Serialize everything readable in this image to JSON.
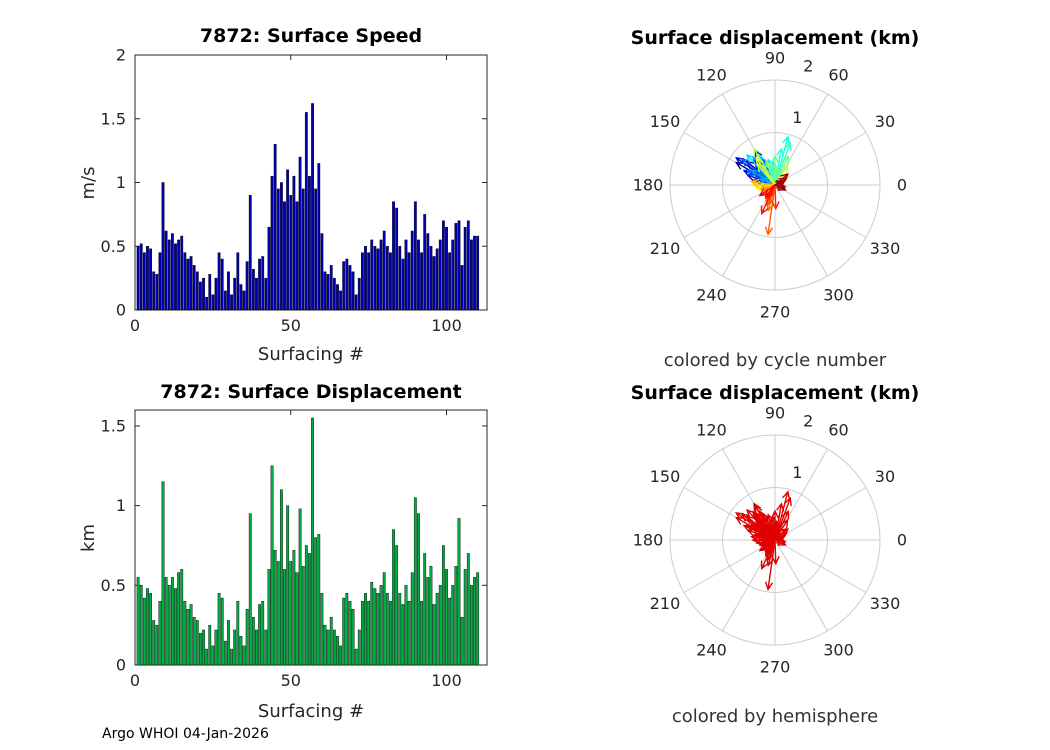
{
  "figure": {
    "footer": "Argo WHOI 04-Jan-2026"
  },
  "displacement_vectors": [
    [
      150,
      0.85
    ],
    [
      140,
      0.7
    ],
    [
      160,
      0.55
    ],
    [
      130,
      0.6
    ],
    [
      120,
      0.75
    ],
    [
      145,
      0.9
    ],
    [
      135,
      0.5
    ],
    [
      155,
      0.65
    ],
    [
      125,
      0.45
    ],
    [
      165,
      0.4
    ],
    [
      170,
      0.35
    ],
    [
      115,
      0.55
    ],
    [
      142,
      0.8
    ],
    [
      152,
      0.6
    ],
    [
      138,
      0.42
    ],
    [
      128,
      0.68
    ],
    [
      148,
      0.52
    ],
    [
      158,
      0.3
    ],
    [
      118,
      0.62
    ],
    [
      133,
      0.78
    ],
    [
      105,
      0.5
    ],
    [
      95,
      0.45
    ],
    [
      75,
      0.95
    ],
    [
      80,
      0.7
    ],
    [
      70,
      0.85
    ],
    [
      100,
      0.4
    ],
    [
      90,
      0.55
    ],
    [
      65,
      0.6
    ],
    [
      85,
      0.35
    ],
    [
      110,
      0.48
    ],
    [
      120,
      0.8
    ],
    [
      58,
      0.45
    ],
    [
      130,
      0.52
    ],
    [
      45,
      0.3
    ],
    [
      125,
      0.62
    ],
    [
      190,
      0.35
    ],
    [
      200,
      0.3
    ],
    [
      180,
      0.42
    ],
    [
      210,
      0.25
    ],
    [
      172,
      0.45
    ],
    [
      195,
      0.28
    ],
    [
      220,
      0.3
    ],
    [
      240,
      0.35
    ],
    [
      255,
      0.5
    ],
    [
      262,
      0.95
    ],
    [
      250,
      0.4
    ],
    [
      230,
      0.28
    ],
    [
      272,
      0.45
    ],
    [
      245,
      0.6
    ],
    [
      235,
      0.3
    ],
    [
      215,
      0.35
    ],
    [
      10,
      0.15
    ],
    [
      350,
      0.2
    ],
    [
      30,
      0.25
    ],
    [
      40,
      0.32
    ],
    [
      20,
      0.18
    ],
    [
      335,
      0.22
    ]
  ],
  "chart_data": [
    {
      "id": "surface-speed",
      "type": "bar",
      "title": "7872: Surface Speed",
      "xlabel": "Surfacing #",
      "ylabel": "m/s",
      "xlim": [
        0,
        113
      ],
      "ylim": [
        0,
        2
      ],
      "xticks": [
        0,
        50,
        100
      ],
      "yticks": [
        0,
        0.5,
        1,
        1.5,
        2
      ],
      "grid": false,
      "bar_color": "#0000b0",
      "bar_edge": "#000000",
      "values": [
        0.5,
        0.52,
        0.45,
        0.5,
        0.48,
        0.3,
        0.28,
        0.45,
        1.0,
        0.62,
        0.55,
        0.6,
        0.52,
        0.55,
        0.58,
        0.45,
        0.4,
        0.42,
        0.35,
        0.3,
        0.22,
        0.25,
        0.1,
        0.28,
        0.12,
        0.25,
        0.45,
        0.4,
        0.15,
        0.3,
        0.12,
        0.25,
        0.45,
        0.2,
        0.15,
        0.38,
        0.9,
        0.32,
        0.25,
        0.4,
        0.42,
        0.25,
        0.65,
        1.05,
        1.3,
        0.95,
        1.0,
        0.85,
        1.1,
        0.9,
        1.05,
        0.85,
        1.2,
        0.95,
        1.55,
        1.05,
        1.62,
        0.95,
        1.15,
        0.6,
        0.3,
        0.28,
        0.35,
        0.25,
        0.2,
        0.15,
        0.38,
        0.4,
        0.35,
        0.3,
        0.12,
        0.25,
        0.45,
        0.5,
        0.45,
        0.55,
        0.5,
        0.48,
        0.55,
        0.62,
        0.5,
        0.45,
        0.85,
        0.8,
        0.5,
        0.4,
        0.55,
        0.45,
        0.62,
        0.85,
        0.55,
        0.45,
        0.75,
        0.6,
        0.5,
        0.42,
        0.48,
        0.55,
        0.7,
        0.65,
        0.45,
        0.55,
        0.68,
        0.7,
        0.35,
        0.65,
        0.7,
        0.55,
        0.58,
        0.58
      ]
    },
    {
      "id": "surface-displacement",
      "type": "bar",
      "title": "7872: Surface Displacement",
      "xlabel": "Surfacing #",
      "ylabel": "km",
      "xlim": [
        0,
        113
      ],
      "ylim": [
        0,
        1.6
      ],
      "xticks": [
        0,
        50,
        100
      ],
      "yticks": [
        0,
        0.5,
        1,
        1.5
      ],
      "grid": false,
      "bar_color": "#00ad43",
      "bar_edge": "#000000",
      "values": [
        0.55,
        0.5,
        0.42,
        0.48,
        0.45,
        0.28,
        0.25,
        0.4,
        1.15,
        0.55,
        0.5,
        0.55,
        0.48,
        0.58,
        0.6,
        0.4,
        0.35,
        0.38,
        0.3,
        0.28,
        0.2,
        0.22,
        0.1,
        0.25,
        0.12,
        0.22,
        0.45,
        0.42,
        0.15,
        0.28,
        0.1,
        0.22,
        0.4,
        0.18,
        0.12,
        0.35,
        0.95,
        0.3,
        0.22,
        0.38,
        0.4,
        0.22,
        0.6,
        1.25,
        0.72,
        0.65,
        1.1,
        0.6,
        1.0,
        0.65,
        0.72,
        0.58,
        0.98,
        0.62,
        0.75,
        0.7,
        1.55,
        0.8,
        0.82,
        0.45,
        0.25,
        0.22,
        0.3,
        0.22,
        0.18,
        0.12,
        0.42,
        0.45,
        0.4,
        0.35,
        0.1,
        0.22,
        0.4,
        0.45,
        0.4,
        0.52,
        0.48,
        0.45,
        0.5,
        0.58,
        0.45,
        0.4,
        0.85,
        0.75,
        0.45,
        0.38,
        0.5,
        0.4,
        0.58,
        1.05,
        0.95,
        0.4,
        0.7,
        0.55,
        0.62,
        0.38,
        0.45,
        0.5,
        0.75,
        0.6,
        0.42,
        0.5,
        0.62,
        0.92,
        0.3,
        0.6,
        0.7,
        0.5,
        0.55,
        0.58
      ]
    },
    {
      "id": "polar-by-cycle",
      "type": "polar-quiver",
      "title": "Surface displacement (km)",
      "caption": "colored by cycle number",
      "rmax": 2,
      "rticks": [
        1,
        2
      ],
      "angle_labels": [
        0,
        30,
        60,
        90,
        120,
        150,
        180,
        210,
        240,
        270,
        300,
        330
      ],
      "color_mode": "jet-by-cycle",
      "colormap": "jet",
      "grid_color": "#cccccc"
    },
    {
      "id": "polar-by-hemisphere",
      "type": "polar-quiver",
      "title": "Surface displacement (km)",
      "caption": "colored by hemisphere",
      "rmax": 2,
      "rticks": [
        1,
        2
      ],
      "angle_labels": [
        0,
        30,
        60,
        90,
        120,
        150,
        180,
        210,
        240,
        270,
        300,
        330
      ],
      "color_mode": "single",
      "color": "#e00000",
      "grid_color": "#cccccc"
    }
  ]
}
